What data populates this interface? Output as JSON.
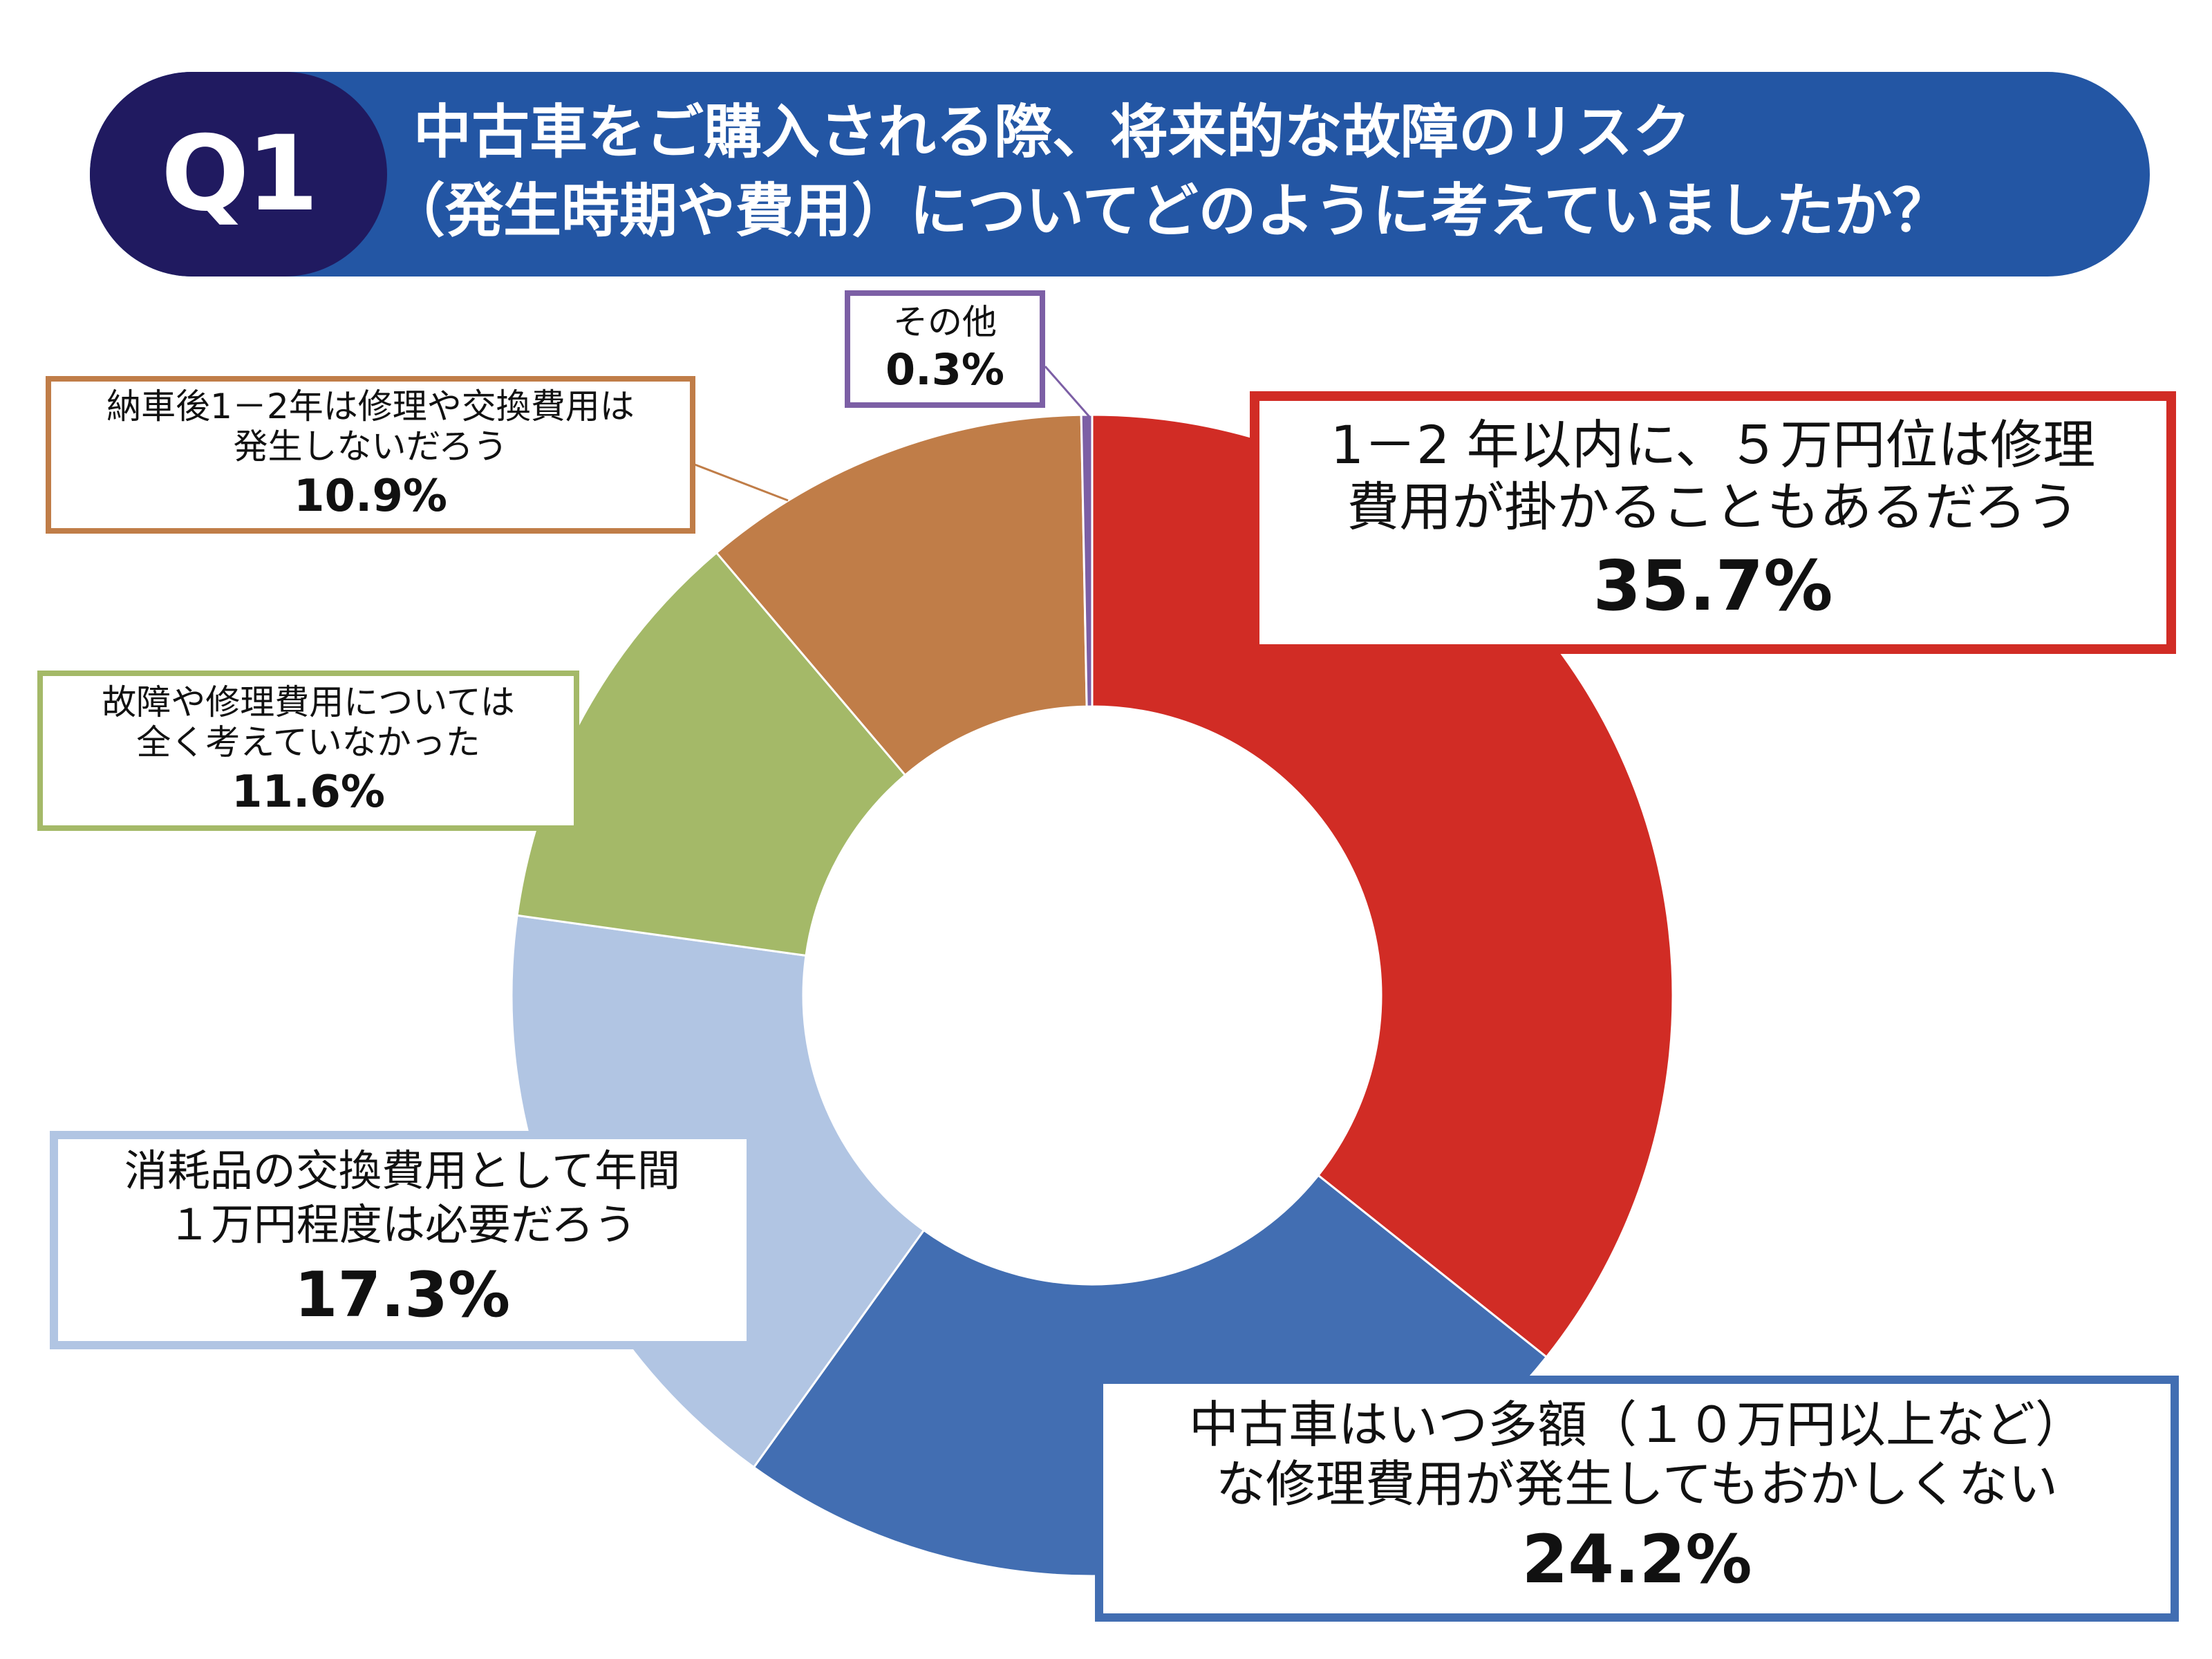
{
  "header": {
    "badge": "Q1",
    "question_line1": "中古車をご購入される際、将来的な故障のリスク",
    "question_line2": "（発生時期や費用）についてどのように考えていましたか？",
    "bar_color": "#2356a4",
    "badge_color": "#201a60"
  },
  "chart_data": {
    "type": "pie",
    "style": "donut",
    "title": "中古車をご購入される際、将来的な故障のリスク（発生時期や費用）についてどのように考えていましたか？",
    "series": [
      {
        "values": [
          35.7,
          24.2,
          17.3,
          11.6,
          10.9,
          0.3
        ],
        "labels": [
          "1－2年以内に、５万円位は修理費用が掛かることもあるだろう",
          "中古車はいつ多額（１０万円以上など）な修理費用が発生してもおかしくない",
          "消耗品の交換費用として年間１万円程度は必要だろう",
          "故障や修理費用については全く考えていなかった",
          "納車後1－2年は修理や交換費用は発生しないだろう",
          "その他"
        ],
        "colors": [
          "#d12c25",
          "#426eb2",
          "#b1c5e3",
          "#a4b968",
          "#c07d48",
          "#7c5fa5"
        ]
      }
    ],
    "unit": "%"
  },
  "labels": {
    "s1": {
      "line1": "1－2 年以内に、５万円位は修理",
      "line2": "費用が掛かることもあるだろう",
      "pct": "35.7%"
    },
    "s2": {
      "line1": "中古車はいつ多額（１０万円以上など）",
      "line2": "な修理費用が発生してもおかしくない",
      "pct": "24.2%"
    },
    "s3": {
      "line1": "消耗品の交換費用として年間",
      "line2": "１万円程度は必要だろう",
      "pct": "17.3%"
    },
    "s4": {
      "line1": "故障や修理費用については",
      "line2": "全く考えていなかった",
      "pct": "11.6%"
    },
    "s5": {
      "line1": "納車後1－2年は修理や交換費用は",
      "line2": "発生しないだろう",
      "pct": "10.9%"
    },
    "s6": {
      "line1": "その他",
      "pct": "0.3%"
    }
  }
}
